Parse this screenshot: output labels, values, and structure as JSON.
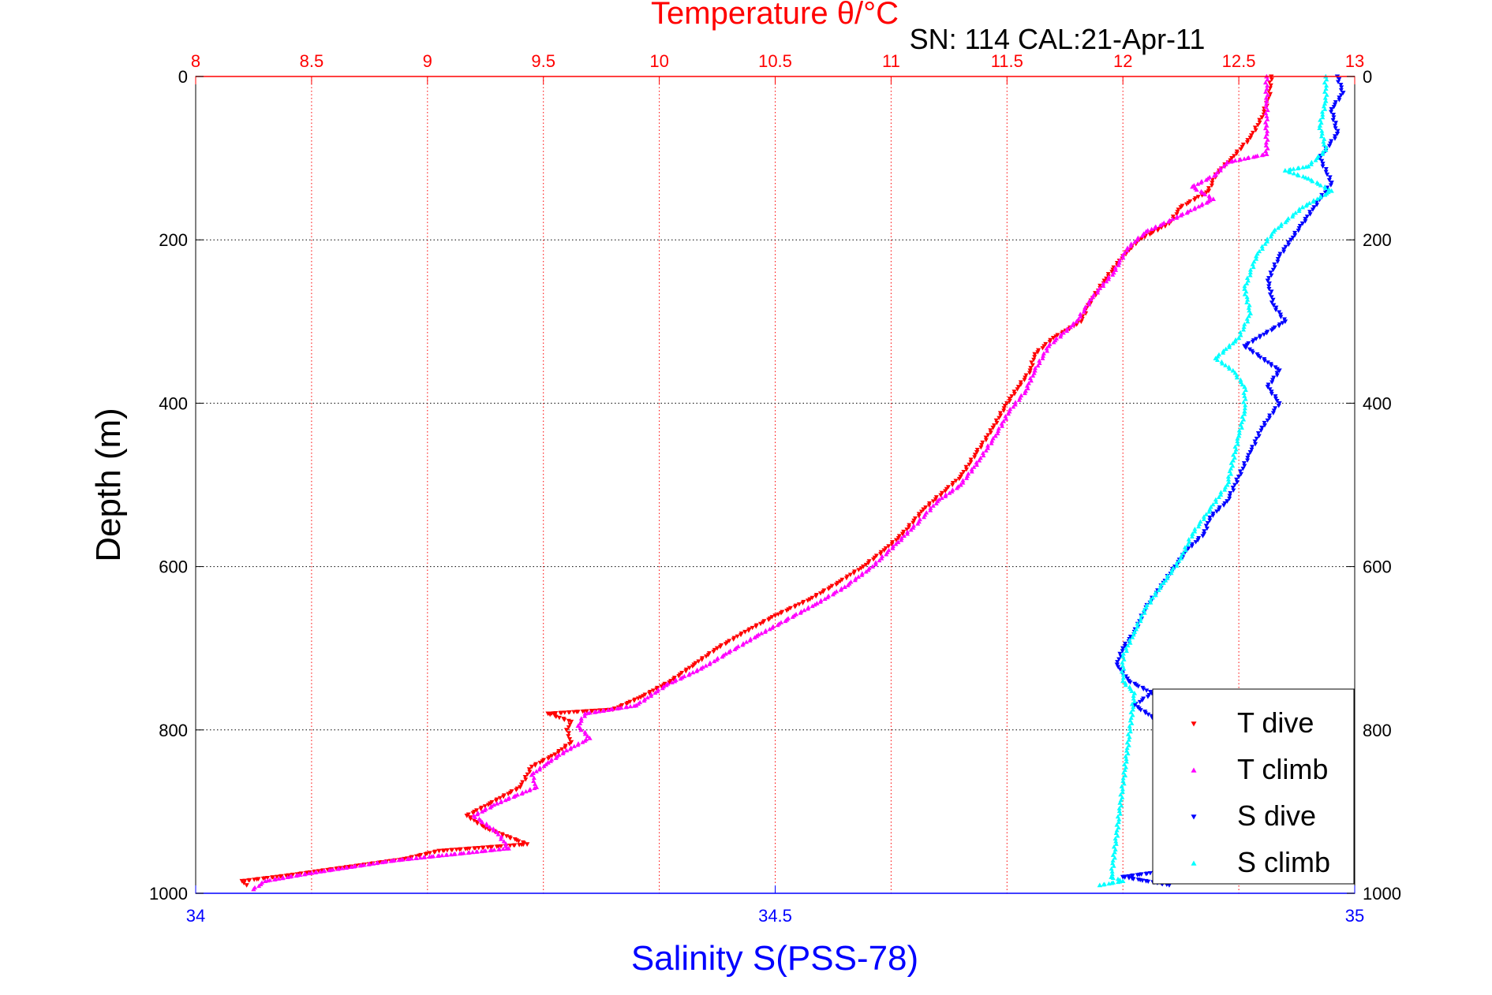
{
  "chart_data": {
    "type": "scatter",
    "title": "Temperature θ/°C",
    "subtitle": "SN: 114  CAL:21-Apr-11",
    "xlabel": "Salinity S(PSS-78)",
    "ylabel": "Depth (m)",
    "x_top": {
      "label": "Temperature θ/°C",
      "lim": [
        8,
        13
      ],
      "ticks": [
        "8",
        "8.5",
        "9",
        "9.5",
        "10",
        "10.5",
        "11",
        "11.5",
        "12",
        "12.5",
        "13"
      ],
      "color": "#ff0000",
      "grid": true
    },
    "x_bottom": {
      "label": "Salinity S(PSS-78)",
      "lim": [
        34,
        35
      ],
      "ticks": [
        "34",
        "34.5",
        "35"
      ],
      "color": "#0000ff"
    },
    "y": {
      "lim": [
        0,
        1000
      ],
      "reversed": true,
      "ticks": [
        "0",
        "200",
        "400",
        "600",
        "800",
        "1000"
      ],
      "grid": true
    },
    "legend": {
      "placement": "bottom-right"
    },
    "series": [
      {
        "name": "T dive",
        "axis": "temperature",
        "color": "#ff0000",
        "marker": "triangle-down",
        "points": [
          [
            12.64,
            0
          ],
          [
            12.63,
            25
          ],
          [
            12.6,
            50
          ],
          [
            12.55,
            75
          ],
          [
            12.47,
            100
          ],
          [
            12.4,
            120
          ],
          [
            12.37,
            140
          ],
          [
            12.25,
            160
          ],
          [
            12.2,
            180
          ],
          [
            12.07,
            200
          ],
          [
            12.0,
            220
          ],
          [
            11.92,
            250
          ],
          [
            11.85,
            280
          ],
          [
            11.82,
            300
          ],
          [
            11.7,
            320
          ],
          [
            11.62,
            340
          ],
          [
            11.6,
            360
          ],
          [
            11.55,
            380
          ],
          [
            11.5,
            400
          ],
          [
            11.44,
            430
          ],
          [
            11.37,
            460
          ],
          [
            11.3,
            490
          ],
          [
            11.22,
            510
          ],
          [
            11.14,
            530
          ],
          [
            11.05,
            560
          ],
          [
            10.97,
            580
          ],
          [
            10.88,
            600
          ],
          [
            10.77,
            620
          ],
          [
            10.65,
            640
          ],
          [
            10.5,
            660
          ],
          [
            10.37,
            680
          ],
          [
            10.25,
            700
          ],
          [
            10.15,
            720
          ],
          [
            10.05,
            740
          ],
          [
            9.92,
            760
          ],
          [
            9.8,
            775
          ],
          [
            9.52,
            780
          ],
          [
            9.62,
            790
          ],
          [
            9.6,
            800
          ],
          [
            9.62,
            815
          ],
          [
            9.55,
            830
          ],
          [
            9.45,
            845
          ],
          [
            9.4,
            870
          ],
          [
            9.27,
            890
          ],
          [
            9.17,
            905
          ],
          [
            9.25,
            920
          ],
          [
            9.43,
            940
          ],
          [
            9.05,
            948
          ],
          [
            8.9,
            958
          ],
          [
            8.65,
            968
          ],
          [
            8.4,
            978
          ],
          [
            8.2,
            985
          ],
          [
            8.22,
            990
          ]
        ]
      },
      {
        "name": "T climb",
        "axis": "temperature",
        "color": "#ff00ff",
        "marker": "triangle-up",
        "points": [
          [
            12.62,
            0
          ],
          [
            12.62,
            30
          ],
          [
            12.62,
            60
          ],
          [
            12.62,
            95
          ],
          [
            12.45,
            105
          ],
          [
            12.4,
            120
          ],
          [
            12.3,
            135
          ],
          [
            12.39,
            150
          ],
          [
            12.25,
            170
          ],
          [
            12.1,
            190
          ],
          [
            12.02,
            210
          ],
          [
            11.96,
            240
          ],
          [
            11.87,
            270
          ],
          [
            11.8,
            300
          ],
          [
            11.68,
            330
          ],
          [
            11.62,
            360
          ],
          [
            11.58,
            385
          ],
          [
            11.51,
            410
          ],
          [
            11.45,
            440
          ],
          [
            11.38,
            470
          ],
          [
            11.3,
            500
          ],
          [
            11.2,
            520
          ],
          [
            11.12,
            545
          ],
          [
            11.03,
            570
          ],
          [
            10.92,
            600
          ],
          [
            10.8,
            625
          ],
          [
            10.68,
            645
          ],
          [
            10.55,
            665
          ],
          [
            10.42,
            685
          ],
          [
            10.3,
            705
          ],
          [
            10.18,
            725
          ],
          [
            10.03,
            745
          ],
          [
            9.9,
            770
          ],
          [
            9.68,
            780
          ],
          [
            9.65,
            795
          ],
          [
            9.7,
            810
          ],
          [
            9.6,
            825
          ],
          [
            9.52,
            840
          ],
          [
            9.45,
            855
          ],
          [
            9.47,
            870
          ],
          [
            9.3,
            890
          ],
          [
            9.2,
            905
          ],
          [
            9.3,
            925
          ],
          [
            9.35,
            945
          ],
          [
            8.85,
            960
          ],
          [
            8.5,
            975
          ],
          [
            8.3,
            985
          ],
          [
            8.25,
            995
          ]
        ]
      },
      {
        "name": "S dive",
        "axis": "salinity",
        "color": "#0000ff",
        "marker": "triangle-down",
        "points": [
          [
            34.985,
            0
          ],
          [
            34.99,
            20
          ],
          [
            34.98,
            40
          ],
          [
            34.985,
            70
          ],
          [
            34.97,
            100
          ],
          [
            34.98,
            130
          ],
          [
            34.965,
            160
          ],
          [
            34.955,
            180
          ],
          [
            34.945,
            200
          ],
          [
            34.935,
            220
          ],
          [
            34.925,
            250
          ],
          [
            34.93,
            280
          ],
          [
            34.94,
            300
          ],
          [
            34.905,
            330
          ],
          [
            34.935,
            360
          ],
          [
            34.925,
            380
          ],
          [
            34.935,
            400
          ],
          [
            34.92,
            430
          ],
          [
            34.91,
            460
          ],
          [
            34.9,
            490
          ],
          [
            34.89,
            520
          ],
          [
            34.875,
            540
          ],
          [
            34.87,
            560
          ],
          [
            34.855,
            580
          ],
          [
            34.845,
            600
          ],
          [
            34.835,
            620
          ],
          [
            34.82,
            650
          ],
          [
            34.81,
            680
          ],
          [
            34.8,
            700
          ],
          [
            34.795,
            720
          ],
          [
            34.805,
            740
          ],
          [
            34.825,
            755
          ],
          [
            34.81,
            770
          ],
          [
            34.995,
            940
          ],
          [
            34.95,
            950
          ],
          [
            34.8,
            980
          ],
          [
            34.82,
            985
          ],
          [
            34.84,
            990
          ]
        ]
      },
      {
        "name": "S climb",
        "axis": "salinity",
        "color": "#00ffff",
        "marker": "triangle-up",
        "points": [
          [
            34.975,
            0
          ],
          [
            34.975,
            30
          ],
          [
            34.97,
            60
          ],
          [
            34.975,
            90
          ],
          [
            34.96,
            110
          ],
          [
            34.94,
            115
          ],
          [
            34.96,
            125
          ],
          [
            34.98,
            140
          ],
          [
            34.955,
            160
          ],
          [
            34.93,
            190
          ],
          [
            34.915,
            220
          ],
          [
            34.905,
            260
          ],
          [
            34.91,
            290
          ],
          [
            34.9,
            320
          ],
          [
            34.88,
            345
          ],
          [
            34.895,
            360
          ],
          [
            34.905,
            380
          ],
          [
            34.905,
            410
          ],
          [
            34.9,
            440
          ],
          [
            34.895,
            470
          ],
          [
            34.89,
            500
          ],
          [
            34.875,
            530
          ],
          [
            34.86,
            560
          ],
          [
            34.85,
            590
          ],
          [
            34.835,
            620
          ],
          [
            34.82,
            650
          ],
          [
            34.81,
            680
          ],
          [
            34.8,
            710
          ],
          [
            34.8,
            740
          ],
          [
            34.81,
            755
          ],
          [
            34.79,
            980
          ],
          [
            34.8,
            985
          ],
          [
            34.78,
            990
          ]
        ]
      }
    ]
  }
}
